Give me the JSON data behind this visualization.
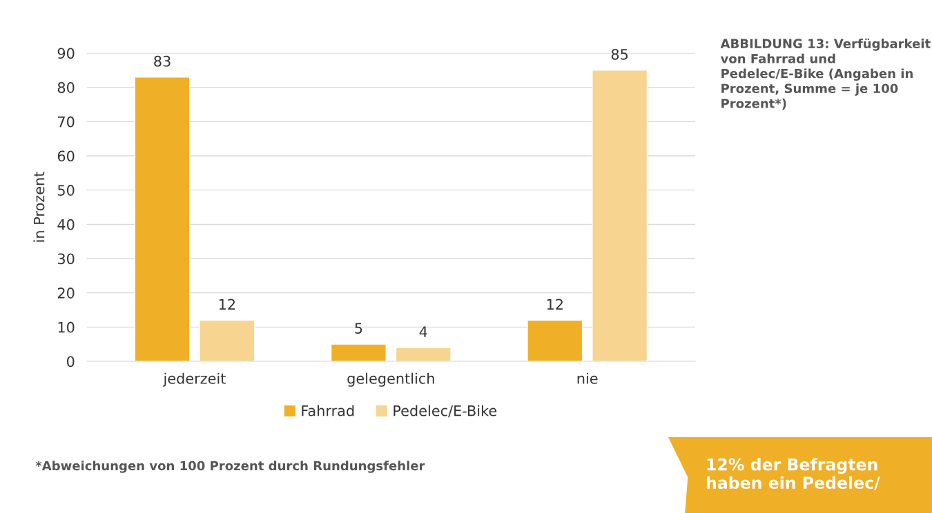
{
  "chart_data": {
    "type": "bar",
    "title": "ABBILDUNG 13: Verfügbarkeit von Fahrrad und Pedelec/E-Bike (Angaben in Prozent, Summe = je 100 Prozent*)",
    "ylabel": "in Prozent",
    "categories": [
      "jederzeit",
      "gelegentlich",
      "nie"
    ],
    "series": [
      {
        "name": "Fahrrad",
        "color": "#efaf27",
        "values": [
          83,
          5,
          12
        ]
      },
      {
        "name": "Pedelec/E-Bike",
        "color": "#f7d590",
        "values": [
          12,
          4,
          85
        ]
      }
    ],
    "ylim": [
      0,
      90
    ],
    "yticks": [
      0,
      10,
      20,
      30,
      40,
      50,
      60,
      70,
      80,
      90
    ],
    "grid": "y",
    "legend": "bottom",
    "data_labels": true,
    "annotations": [
      "*Abweichungen von 100 Prozent durch Rundungsfehler",
      "12% der Befragten haben ein Pedelec/"
    ]
  }
}
